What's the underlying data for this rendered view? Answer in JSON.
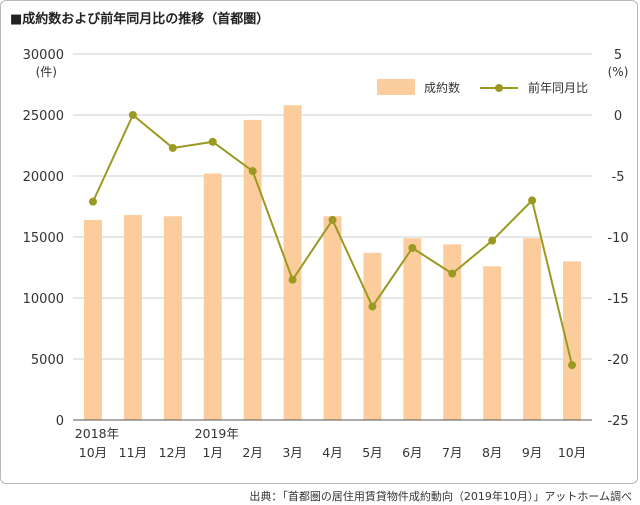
{
  "title": "■成約数および前年同月比の推移（首都圏）",
  "source": "出典：「首都圏の居住用賃貸物件成約動向（2019年10月）」アットホーム調べ",
  "chart_data": {
    "type": "bar+line",
    "categories": [
      "10月",
      "11月",
      "12月",
      "1月",
      "2月",
      "3月",
      "4月",
      "5月",
      "6月",
      "7月",
      "8月",
      "9月",
      "10月"
    ],
    "year_labels": [
      {
        "index": 0,
        "text": "2018年"
      },
      {
        "index": 3,
        "text": "2019年"
      }
    ],
    "left_axis": {
      "unit": "(件)",
      "ylim": [
        0,
        30000
      ],
      "ticks": [
        "0",
        "5000",
        "10000",
        "15000",
        "20000",
        "25000",
        "30000"
      ]
    },
    "right_axis": {
      "unit": "(%)",
      "ylim": [
        -25,
        5
      ],
      "ticks": [
        "-25",
        "-20",
        "-15",
        "-10",
        "-5",
        "0",
        "5"
      ]
    },
    "series": [
      {
        "name": "成約数",
        "type": "bar",
        "axis": "left",
        "color": "#fccd9c",
        "values": [
          16400,
          16800,
          16700,
          20200,
          24600,
          25800,
          16700,
          13700,
          14900,
          14400,
          12600,
          14900,
          13000
        ]
      },
      {
        "name": "前年同月比",
        "type": "line",
        "axis": "right",
        "color": "#9a9a22",
        "values": [
          -7.1,
          0.0,
          -2.7,
          -2.2,
          -4.6,
          -13.5,
          -8.6,
          -15.7,
          -10.9,
          -13.0,
          -10.3,
          -7.0,
          -20.5
        ]
      }
    ],
    "grid": true,
    "legend": "top-right"
  }
}
